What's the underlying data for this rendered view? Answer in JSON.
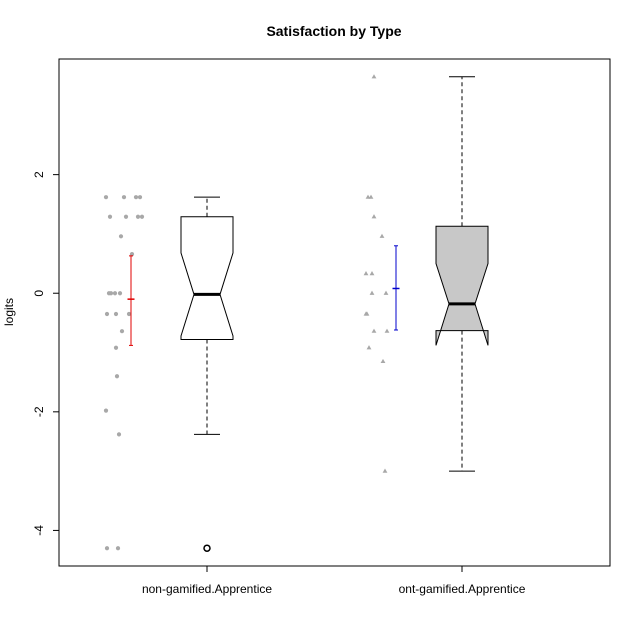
{
  "chart_data": {
    "type": "boxplot",
    "title": "Satisfaction by Type",
    "xlabel": "",
    "ylabel": "logits",
    "ylim": [
      -4.6,
      3.95
    ],
    "y_ticks": [
      -4,
      -2,
      0,
      2
    ],
    "y_tick_labels": [
      "-4",
      "-2",
      "0",
      "2"
    ],
    "grid": false,
    "legend": "none",
    "categories": [
      "non-gamified.Apprentice",
      "ont-gamified.Apprentice"
    ],
    "boxes": [
      {
        "category": "non-gamified.Apprentice",
        "notched": true,
        "fill": "#ffffff",
        "whisker_low": -2.38,
        "q1": -0.78,
        "median": -0.02,
        "q3": 1.29,
        "whisker_high": 1.62,
        "notch_low": -0.72,
        "notch_high": 0.68,
        "outliers": [
          -4.3
        ]
      },
      {
        "category": "ont-gamified.Apprentice",
        "notched": true,
        "fill": "#c8c8c8",
        "whisker_low": -3.0,
        "q1": -0.63,
        "median": -0.18,
        "q3": 1.13,
        "whisker_high": 3.65,
        "notch_low": -0.88,
        "notch_high": 0.5,
        "outliers": []
      }
    ],
    "mean_ci": [
      {
        "category": "non-gamified.Apprentice",
        "mean": -0.1,
        "low": -0.88,
        "high": 0.63,
        "color": "#e00000"
      },
      {
        "category": "ont-gamified.Apprentice",
        "mean": 0.08,
        "low": -0.62,
        "high": 0.8,
        "color": "#0000cc"
      }
    ],
    "raw_points": [
      {
        "category": "non-gamified.Apprentice",
        "marker": "circle",
        "color": "#a8a8a8",
        "points": [
          {
            "jitter": -0.22,
            "y": 1.62
          },
          {
            "jitter": -0.04,
            "y": 1.62
          },
          {
            "jitter": 0.08,
            "y": 1.62
          },
          {
            "jitter": 0.12,
            "y": 1.62
          },
          {
            "jitter": -0.18,
            "y": 1.29
          },
          {
            "jitter": -0.02,
            "y": 1.29
          },
          {
            "jitter": 0.1,
            "y": 1.29
          },
          {
            "jitter": 0.14,
            "y": 1.29
          },
          {
            "jitter": -0.07,
            "y": 0.96
          },
          {
            "jitter": 0.04,
            "y": 0.66
          },
          {
            "jitter": -0.19,
            "y": 0.0
          },
          {
            "jitter": -0.17,
            "y": 0.0
          },
          {
            "jitter": -0.13,
            "y": 0.0
          },
          {
            "jitter": -0.08,
            "y": 0.0
          },
          {
            "jitter": -0.21,
            "y": -0.35
          },
          {
            "jitter": -0.12,
            "y": -0.35
          },
          {
            "jitter": 0.01,
            "y": -0.35
          },
          {
            "jitter": -0.06,
            "y": -0.64
          },
          {
            "jitter": -0.12,
            "y": -0.92
          },
          {
            "jitter": -0.11,
            "y": -1.4
          },
          {
            "jitter": -0.22,
            "y": -1.98
          },
          {
            "jitter": -0.09,
            "y": -2.38
          },
          {
            "jitter": -0.21,
            "y": -4.3
          },
          {
            "jitter": -0.1,
            "y": -4.3
          }
        ]
      },
      {
        "category": "ont-gamified.Apprentice",
        "marker": "triangle",
        "color": "#a8a8a8",
        "points": [
          {
            "jitter": -0.19,
            "y": 3.65
          },
          {
            "jitter": -0.25,
            "y": 1.62
          },
          {
            "jitter": -0.22,
            "y": 1.62
          },
          {
            "jitter": -0.19,
            "y": 1.29
          },
          {
            "jitter": -0.11,
            "y": 0.96
          },
          {
            "jitter": -0.27,
            "y": 0.33
          },
          {
            "jitter": -0.21,
            "y": 0.33
          },
          {
            "jitter": -0.21,
            "y": 0.0
          },
          {
            "jitter": -0.07,
            "y": 0.0
          },
          {
            "jitter": -0.26,
            "y": -0.35
          },
          {
            "jitter": -0.27,
            "y": -0.35
          },
          {
            "jitter": -0.19,
            "y": -0.64
          },
          {
            "jitter": -0.06,
            "y": -0.64
          },
          {
            "jitter": -0.24,
            "y": -0.92
          },
          {
            "jitter": -0.1,
            "y": -1.15
          },
          {
            "jitter": -0.08,
            "y": -3.0
          }
        ]
      }
    ]
  }
}
